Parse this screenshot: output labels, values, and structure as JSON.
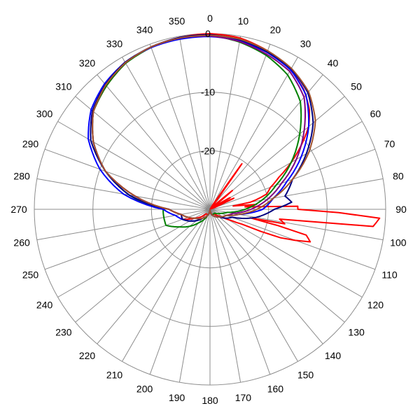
{
  "chart_data": {
    "type": "polar-line",
    "title": "",
    "angular_axis": {
      "unit": "deg",
      "direction": "clockwise",
      "zero_at": "top",
      "ticks": [
        "0",
        "10",
        "20",
        "30",
        "40",
        "50",
        "60",
        "70",
        "80",
        "90",
        "100",
        "110",
        "120",
        "130",
        "140",
        "150",
        "160",
        "170",
        "180",
        "190",
        "200",
        "210",
        "220",
        "230",
        "240",
        "250",
        "260",
        "270",
        "280",
        "290",
        "300",
        "310",
        "320",
        "330",
        "340",
        "350"
      ]
    },
    "radial_axis": {
      "range": [
        -30,
        0
      ],
      "gridlines": [
        -30,
        -20,
        -10,
        0
      ],
      "tick_labels": [
        {
          "value": -20,
          "text": "-20"
        },
        {
          "value": -10,
          "text": "-10"
        },
        {
          "value": 0,
          "text": "0"
        }
      ]
    },
    "series": [
      {
        "color": "#ff0000",
        "points": [
          [
            0,
            0
          ],
          [
            10,
            -0.3
          ],
          [
            20,
            -1.2
          ],
          [
            30,
            -2.5
          ],
          [
            38,
            -4
          ],
          [
            45,
            -6
          ],
          [
            50,
            -8
          ],
          [
            55,
            -11
          ],
          [
            60,
            -14
          ],
          [
            65,
            -17
          ],
          [
            70,
            -19
          ],
          [
            75,
            -20
          ],
          [
            80,
            -23
          ],
          [
            82,
            -26
          ],
          [
            84,
            -22
          ],
          [
            86,
            -24
          ],
          [
            88,
            -15
          ],
          [
            90,
            -15
          ],
          [
            93,
            -1
          ],
          [
            96,
            -2
          ],
          [
            98,
            -18
          ],
          [
            101,
            -17
          ],
          [
            102,
            -23
          ],
          [
            105,
            -13
          ],
          [
            108,
            -12
          ],
          [
            112,
            -17
          ],
          [
            115,
            -24
          ],
          [
            118,
            -26
          ],
          [
            125,
            -28
          ],
          [
            140,
            -29
          ],
          [
            160,
            -29
          ],
          [
            180,
            -30
          ],
          [
            200,
            -29
          ],
          [
            220,
            -29
          ],
          [
            240,
            -27
          ],
          [
            250,
            -25
          ],
          [
            260,
            -25
          ],
          [
            270,
            -23
          ],
          [
            280,
            -17
          ],
          [
            290,
            -11
          ],
          [
            300,
            -7
          ],
          [
            310,
            -4
          ],
          [
            320,
            -2.5
          ],
          [
            330,
            -1.2
          ],
          [
            340,
            -0.5
          ],
          [
            350,
            -0.2
          ],
          [
            360,
            0
          ]
        ],
        "lobes": [
          [
            35,
            -12
          ],
          [
            50,
            -21
          ],
          [
            60,
            -23
          ],
          [
            65,
            -22
          ]
        ]
      },
      {
        "color": "#008000",
        "points": [
          [
            0,
            -0.3
          ],
          [
            10,
            -1
          ],
          [
            20,
            -2
          ],
          [
            30,
            -3.5
          ],
          [
            40,
            -6
          ],
          [
            50,
            -10
          ],
          [
            60,
            -14
          ],
          [
            70,
            -18
          ],
          [
            80,
            -21
          ],
          [
            90,
            -24
          ],
          [
            100,
            -27
          ],
          [
            110,
            -28
          ],
          [
            130,
            -29
          ],
          [
            160,
            -29
          ],
          [
            180,
            -30
          ],
          [
            200,
            -29
          ],
          [
            220,
            -27
          ],
          [
            240,
            -24
          ],
          [
            250,
            -22
          ],
          [
            260,
            -22
          ],
          [
            270,
            -22
          ],
          [
            280,
            -16
          ],
          [
            290,
            -11
          ],
          [
            300,
            -7
          ],
          [
            310,
            -4
          ],
          [
            320,
            -2.5
          ],
          [
            330,
            -1.2
          ],
          [
            340,
            -0.6
          ],
          [
            350,
            -0.3
          ],
          [
            360,
            -0.3
          ]
        ]
      },
      {
        "color": "#0000ff",
        "points": [
          [
            0,
            -0.5
          ],
          [
            10,
            -0.8
          ],
          [
            20,
            -1.5
          ],
          [
            30,
            -2.5
          ],
          [
            40,
            -4.5
          ],
          [
            50,
            -8
          ],
          [
            60,
            -12
          ],
          [
            70,
            -16
          ],
          [
            80,
            -19
          ],
          [
            90,
            -21
          ],
          [
            100,
            -25
          ],
          [
            110,
            -27
          ],
          [
            130,
            -28
          ],
          [
            160,
            -29
          ],
          [
            180,
            -30
          ],
          [
            200,
            -29
          ],
          [
            220,
            -28
          ],
          [
            240,
            -26
          ],
          [
            250,
            -25
          ],
          [
            260,
            -24
          ],
          [
            270,
            -22
          ],
          [
            280,
            -15
          ],
          [
            290,
            -10
          ],
          [
            300,
            -6
          ],
          [
            310,
            -3.5
          ],
          [
            320,
            -2
          ],
          [
            330,
            -1
          ],
          [
            340,
            -0.6
          ],
          [
            350,
            -0.5
          ],
          [
            360,
            -0.5
          ]
        ]
      },
      {
        "color": "#000080",
        "points": [
          [
            0,
            -0.2
          ],
          [
            10,
            -0.6
          ],
          [
            20,
            -1.4
          ],
          [
            30,
            -2.3
          ],
          [
            40,
            -4
          ],
          [
            50,
            -7
          ],
          [
            60,
            -11
          ],
          [
            70,
            -15
          ],
          [
            80,
            -17
          ],
          [
            85,
            -16
          ],
          [
            90,
            -19
          ],
          [
            100,
            -22
          ],
          [
            110,
            -26
          ],
          [
            130,
            -28
          ],
          [
            160,
            -29
          ],
          [
            180,
            -30
          ],
          [
            200,
            -29
          ],
          [
            220,
            -28
          ],
          [
            240,
            -26
          ],
          [
            250,
            -25
          ],
          [
            260,
            -25
          ],
          [
            270,
            -23
          ],
          [
            280,
            -16
          ],
          [
            290,
            -11
          ],
          [
            300,
            -6.5
          ],
          [
            310,
            -3.8
          ],
          [
            320,
            -2.2
          ],
          [
            330,
            -1
          ],
          [
            340,
            -0.5
          ],
          [
            350,
            -0.2
          ],
          [
            360,
            -0.2
          ]
        ]
      },
      {
        "color": "#800080",
        "points": [
          [
            0,
            -0.4
          ],
          [
            10,
            -0.9
          ],
          [
            20,
            -1.8
          ],
          [
            30,
            -2.8
          ],
          [
            40,
            -5
          ],
          [
            50,
            -9
          ],
          [
            60,
            -13
          ],
          [
            70,
            -17
          ],
          [
            80,
            -20
          ],
          [
            90,
            -23
          ],
          [
            100,
            -26
          ],
          [
            110,
            -27
          ],
          [
            130,
            -28
          ],
          [
            160,
            -29
          ],
          [
            180,
            -30
          ],
          [
            200,
            -29
          ],
          [
            220,
            -28
          ],
          [
            240,
            -27
          ],
          [
            250,
            -26
          ],
          [
            260,
            -25
          ],
          [
            270,
            -23
          ],
          [
            280,
            -17
          ],
          [
            290,
            -11
          ],
          [
            300,
            -7
          ],
          [
            310,
            -4
          ],
          [
            320,
            -2.3
          ],
          [
            330,
            -1.1
          ],
          [
            340,
            -0.5
          ],
          [
            350,
            -0.3
          ],
          [
            360,
            -0.4
          ]
        ]
      },
      {
        "color": "#a0522d",
        "points": [
          [
            0,
            -0.3
          ],
          [
            10,
            -0.5
          ],
          [
            20,
            -1.2
          ],
          [
            30,
            -2.2
          ],
          [
            40,
            -3.8
          ],
          [
            50,
            -6.5
          ],
          [
            60,
            -10.5
          ],
          [
            70,
            -15
          ],
          [
            80,
            -19
          ],
          [
            90,
            -22
          ],
          [
            100,
            -25
          ],
          [
            110,
            -27
          ],
          [
            130,
            -28
          ],
          [
            160,
            -29
          ],
          [
            180,
            -30
          ],
          [
            200,
            -29
          ],
          [
            220,
            -28
          ],
          [
            240,
            -27
          ],
          [
            250,
            -26
          ],
          [
            260,
            -25
          ],
          [
            270,
            -23
          ],
          [
            280,
            -17
          ],
          [
            290,
            -11
          ],
          [
            300,
            -7
          ],
          [
            310,
            -4
          ],
          [
            320,
            -2.3
          ],
          [
            330,
            -1.1
          ],
          [
            340,
            -0.5
          ],
          [
            350,
            -0.3
          ],
          [
            360,
            -0.3
          ]
        ]
      }
    ]
  }
}
